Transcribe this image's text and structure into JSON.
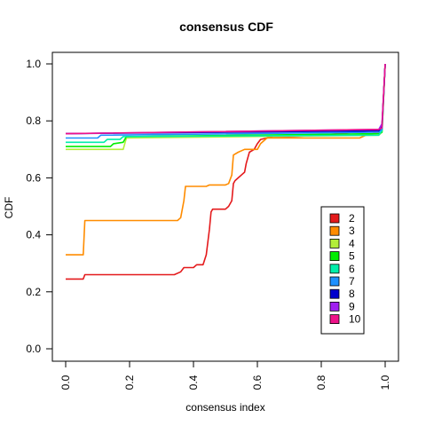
{
  "chart_data": {
    "type": "line",
    "title": "consensus CDF",
    "xlabel": "consensus index",
    "ylabel": "CDF",
    "xlim": [
      0,
      1
    ],
    "ylim": [
      0,
      1
    ],
    "xticks": [
      "0.0",
      "0.2",
      "0.4",
      "0.6",
      "0.8",
      "1.0"
    ],
    "yticks": [
      "0.0",
      "0.2",
      "0.4",
      "0.6",
      "0.8",
      "1.0"
    ],
    "legend_position": "center-right",
    "series": [
      {
        "name": "2",
        "color": "#e41a1c",
        "points": [
          [
            0.0,
            0.245
          ],
          [
            0.055,
            0.245
          ],
          [
            0.06,
            0.26
          ],
          [
            0.34,
            0.26
          ],
          [
            0.36,
            0.27
          ],
          [
            0.37,
            0.285
          ],
          [
            0.4,
            0.285
          ],
          [
            0.41,
            0.295
          ],
          [
            0.43,
            0.295
          ],
          [
            0.44,
            0.33
          ],
          [
            0.45,
            0.42
          ],
          [
            0.455,
            0.48
          ],
          [
            0.46,
            0.49
          ],
          [
            0.5,
            0.49
          ],
          [
            0.51,
            0.5
          ],
          [
            0.52,
            0.52
          ],
          [
            0.525,
            0.58
          ],
          [
            0.53,
            0.59
          ],
          [
            0.54,
            0.6
          ],
          [
            0.55,
            0.61
          ],
          [
            0.56,
            0.62
          ],
          [
            0.565,
            0.65
          ],
          [
            0.575,
            0.69
          ],
          [
            0.59,
            0.7
          ],
          [
            0.6,
            0.72
          ],
          [
            0.61,
            0.735
          ],
          [
            0.63,
            0.74
          ],
          [
            0.65,
            0.745
          ],
          [
            0.7,
            0.745
          ],
          [
            0.8,
            0.75
          ],
          [
            0.9,
            0.76
          ],
          [
            0.98,
            0.77
          ],
          [
            0.99,
            0.78
          ],
          [
            1.0,
            1.0
          ]
        ]
      },
      {
        "name": "3",
        "color": "#ff8c00",
        "points": [
          [
            0.0,
            0.33
          ],
          [
            0.055,
            0.33
          ],
          [
            0.06,
            0.45
          ],
          [
            0.35,
            0.45
          ],
          [
            0.36,
            0.46
          ],
          [
            0.37,
            0.52
          ],
          [
            0.375,
            0.57
          ],
          [
            0.44,
            0.57
          ],
          [
            0.45,
            0.575
          ],
          [
            0.5,
            0.575
          ],
          [
            0.51,
            0.58
          ],
          [
            0.52,
            0.61
          ],
          [
            0.525,
            0.68
          ],
          [
            0.54,
            0.69
          ],
          [
            0.56,
            0.7
          ],
          [
            0.6,
            0.7
          ],
          [
            0.61,
            0.72
          ],
          [
            0.63,
            0.74
          ],
          [
            0.92,
            0.74
          ],
          [
            0.94,
            0.75
          ],
          [
            0.98,
            0.76
          ],
          [
            0.99,
            0.78
          ],
          [
            1.0,
            1.0
          ]
        ]
      },
      {
        "name": "4",
        "color": "#b3ee3a",
        "points": [
          [
            0.0,
            0.7
          ],
          [
            0.18,
            0.7
          ],
          [
            0.19,
            0.74
          ],
          [
            0.98,
            0.75
          ],
          [
            0.99,
            0.76
          ],
          [
            1.0,
            1.0
          ]
        ]
      },
      {
        "name": "5",
        "color": "#00ee00",
        "points": [
          [
            0.0,
            0.71
          ],
          [
            0.14,
            0.71
          ],
          [
            0.15,
            0.72
          ],
          [
            0.18,
            0.725
          ],
          [
            0.19,
            0.745
          ],
          [
            0.98,
            0.755
          ],
          [
            0.99,
            0.76
          ],
          [
            1.0,
            1.0
          ]
        ]
      },
      {
        "name": "6",
        "color": "#00eeaa",
        "points": [
          [
            0.0,
            0.725
          ],
          [
            0.12,
            0.725
          ],
          [
            0.13,
            0.735
          ],
          [
            0.17,
            0.735
          ],
          [
            0.18,
            0.745
          ],
          [
            0.98,
            0.75
          ],
          [
            0.99,
            0.765
          ],
          [
            1.0,
            1.0
          ]
        ]
      },
      {
        "name": "7",
        "color": "#1e90ff",
        "points": [
          [
            0.0,
            0.74
          ],
          [
            0.1,
            0.74
          ],
          [
            0.11,
            0.75
          ],
          [
            0.98,
            0.76
          ],
          [
            0.99,
            0.77
          ],
          [
            1.0,
            1.0
          ]
        ]
      },
      {
        "name": "8",
        "color": "#0000cd",
        "points": [
          [
            0.0,
            0.755
          ],
          [
            0.98,
            0.765
          ],
          [
            0.99,
            0.78
          ],
          [
            1.0,
            1.0
          ]
        ]
      },
      {
        "name": "9",
        "color": "#a020f0",
        "points": [
          [
            0.0,
            0.755
          ],
          [
            0.98,
            0.77
          ],
          [
            0.99,
            0.79
          ],
          [
            1.0,
            1.0
          ]
        ]
      },
      {
        "name": "10",
        "color": "#ee1289",
        "points": [
          [
            0.0,
            0.755
          ],
          [
            0.98,
            0.77
          ],
          [
            0.99,
            0.775
          ],
          [
            1.0,
            1.0
          ]
        ]
      }
    ]
  }
}
